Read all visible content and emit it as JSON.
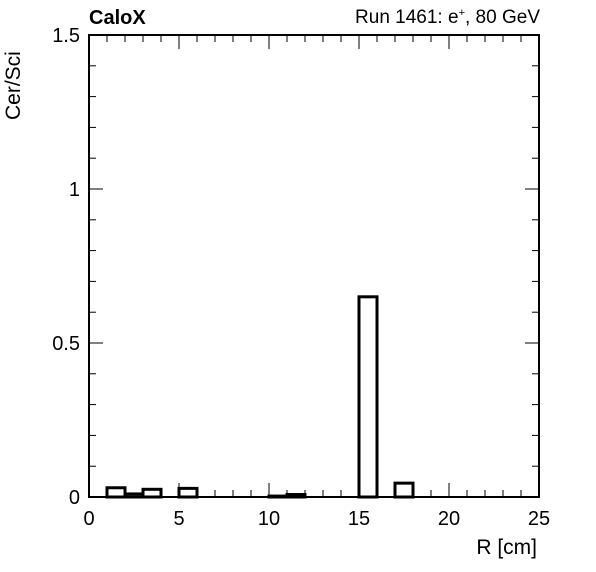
{
  "chart_data": {
    "type": "bar",
    "title": "CaloX",
    "run_label_prefix": "Run 1461: e",
    "run_label_sup": "+",
    "run_label_suffix": ", 80 GeV",
    "xlabel": "R [cm]",
    "ylabel": "Cer/Sci",
    "xlim": [
      0,
      25
    ],
    "ylim": [
      0,
      1.5
    ],
    "bin_width": 1,
    "x_ticks": [
      0,
      5,
      10,
      15,
      20,
      25
    ],
    "y_ticks": [
      0,
      0.5,
      1,
      1.5
    ],
    "x_tick_labels": [
      "0",
      "5",
      "10",
      "15",
      "20",
      "25"
    ],
    "y_tick_labels": [
      "0",
      "0.5",
      "1",
      "1.5"
    ],
    "bins": [
      {
        "x": 1,
        "value": 0.03
      },
      {
        "x": 2,
        "value": 0.01
      },
      {
        "x": 3,
        "value": 0.025
      },
      {
        "x": 5,
        "value": 0.028
      },
      {
        "x": 10,
        "value": 0.003
      },
      {
        "x": 11,
        "value": 0.008
      },
      {
        "x": 15,
        "value": 0.65
      },
      {
        "x": 17,
        "value": 0.045
      }
    ],
    "grid": false,
    "line_color": "#000000"
  }
}
